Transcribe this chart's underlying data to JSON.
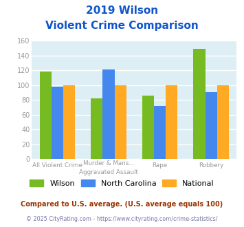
{
  "title_line1": "2019 Wilson",
  "title_line2": "Violent Crime Comparison",
  "cat_labels_top": [
    "",
    "Murder & Mans...",
    "",
    ""
  ],
  "cat_labels_bot": [
    "All Violent Crime",
    "Aggravated Assault",
    "Rape",
    "Robbery"
  ],
  "series": {
    "Wilson": [
      118,
      82,
      86,
      149
    ],
    "North Carolina": [
      98,
      121,
      72,
      90
    ],
    "National": [
      100,
      100,
      100,
      100
    ]
  },
  "colors": {
    "Wilson": "#77bb22",
    "North Carolina": "#4488ee",
    "National": "#ffaa22"
  },
  "ylim": [
    0,
    160
  ],
  "yticks": [
    0,
    20,
    40,
    60,
    80,
    100,
    120,
    140,
    160
  ],
  "title_color": "#1155cc",
  "plot_bg": "#ddeef5",
  "grid_color": "#ffffff",
  "footnote1": "Compared to U.S. average. (U.S. average equals 100)",
  "footnote2": "© 2025 CityRating.com - https://www.cityrating.com/crime-statistics/",
  "footnote1_color": "#993300",
  "footnote2_color": "#7777aa"
}
